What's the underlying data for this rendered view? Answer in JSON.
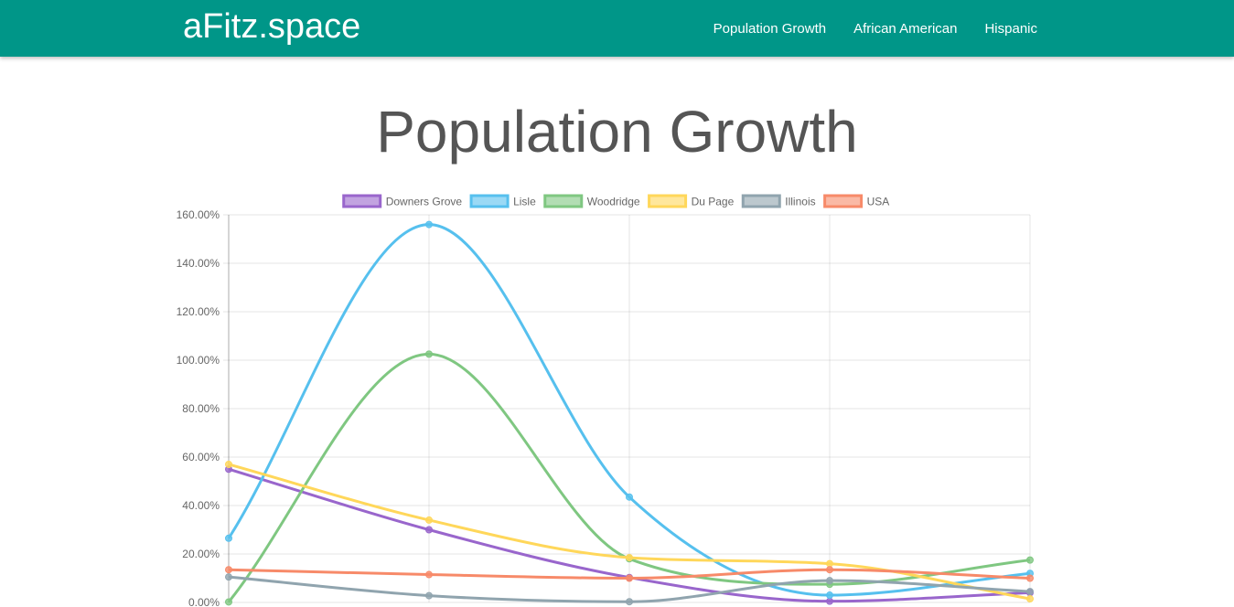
{
  "navbar": {
    "brand": "aFitz.space",
    "links": [
      {
        "label": "Population Growth"
      },
      {
        "label": "African American"
      },
      {
        "label": "Hispanic"
      }
    ],
    "color": "#009688"
  },
  "page": {
    "title": "Population Growth"
  },
  "chart_data": {
    "type": "line",
    "title": "",
    "xlabel": "",
    "ylabel": "",
    "x": [
      0,
      1,
      2,
      3,
      4
    ],
    "ylim": [
      0,
      160
    ],
    "ytick_step": 20,
    "ytick_format": "percent_2dp",
    "grid": true,
    "legend_position": "top-center",
    "series": [
      {
        "name": "Downers Grove",
        "color": "#9966cc",
        "values": [
          55.0,
          30.0,
          10.3,
          0.5,
          4.0
        ]
      },
      {
        "name": "Lisle",
        "color": "#56c0ee",
        "values": [
          26.5,
          156.0,
          43.5,
          3.0,
          12.0
        ]
      },
      {
        "name": "Woodridge",
        "color": "#7fc781",
        "values": [
          0.2,
          102.5,
          18.0,
          7.5,
          17.5
        ]
      },
      {
        "name": "Du Page",
        "color": "#ffd75a",
        "values": [
          57.0,
          34.0,
          18.5,
          16.0,
          1.5
        ]
      },
      {
        "name": "Illinois",
        "color": "#90a4ae",
        "values": [
          10.5,
          2.8,
          0.3,
          9.0,
          4.5
        ]
      },
      {
        "name": "USA",
        "color": "#f78a69",
        "values": [
          13.5,
          11.5,
          10.0,
          13.5,
          10.0
        ]
      }
    ]
  }
}
